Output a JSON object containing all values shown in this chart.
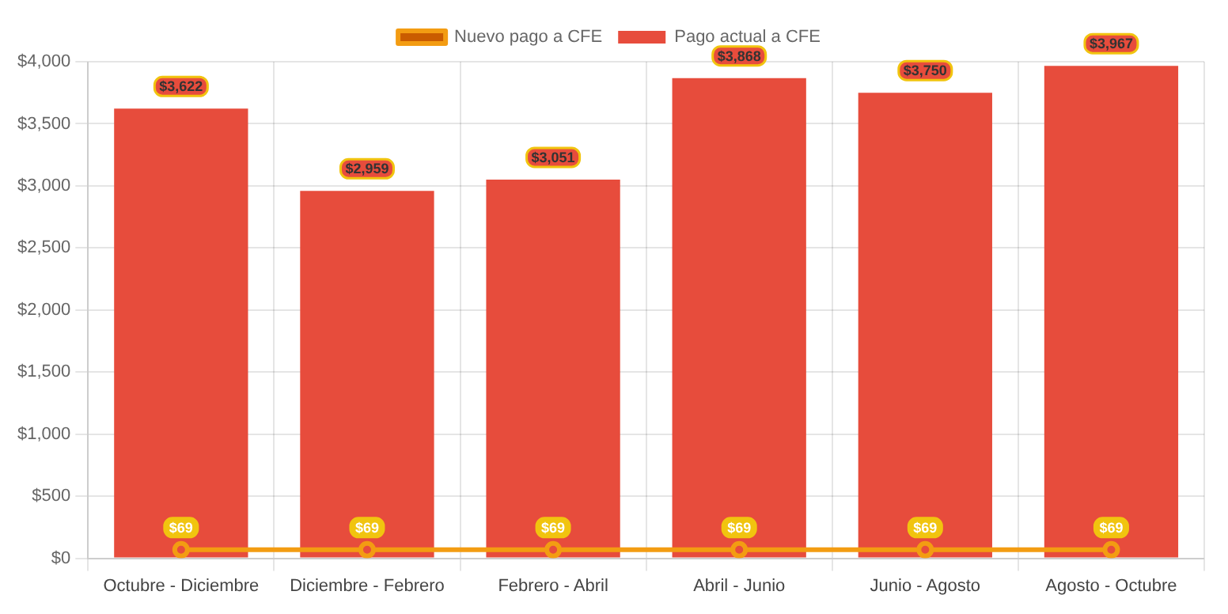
{
  "chart_data": {
    "type": "bar",
    "categories": [
      "Octubre - Diciembre",
      "Diciembre - Febrero",
      "Febrero - Abril",
      "Abril - Junio",
      "Junio - Agosto",
      "Agosto - Octubre"
    ],
    "series": [
      {
        "name": "Nuevo pago a CFE",
        "type": "line",
        "color": "#f39c12",
        "values": [
          69,
          69,
          69,
          69,
          69,
          69
        ],
        "value_labels": [
          "$69",
          "$69",
          "$69",
          "$69",
          "$69",
          "$69"
        ]
      },
      {
        "name": "Pago actual a CFE",
        "color": "#e74c3c",
        "values": [
          3622,
          2959,
          3051,
          3868,
          3750,
          3967
        ],
        "value_labels": [
          "$3,622",
          "$2,959",
          "$3,051",
          "$3,868",
          "$3,750",
          "$3,967"
        ]
      }
    ],
    "ylim": [
      0,
      4000
    ],
    "yticks": [
      {
        "value": 0,
        "label": "$0"
      },
      {
        "value": 500,
        "label": "$500"
      },
      {
        "value": 1000,
        "label": "$1,000"
      },
      {
        "value": 1500,
        "label": "$1,500"
      },
      {
        "value": 2000,
        "label": "$2,000"
      },
      {
        "value": 2500,
        "label": "$2,500"
      },
      {
        "value": 3000,
        "label": "$3,000"
      },
      {
        "value": 3500,
        "label": "$3,500"
      },
      {
        "value": 4000,
        "label": "$4,000"
      }
    ],
    "grid": true,
    "legend": "top",
    "marker": "circle",
    "line_style": "solid"
  }
}
